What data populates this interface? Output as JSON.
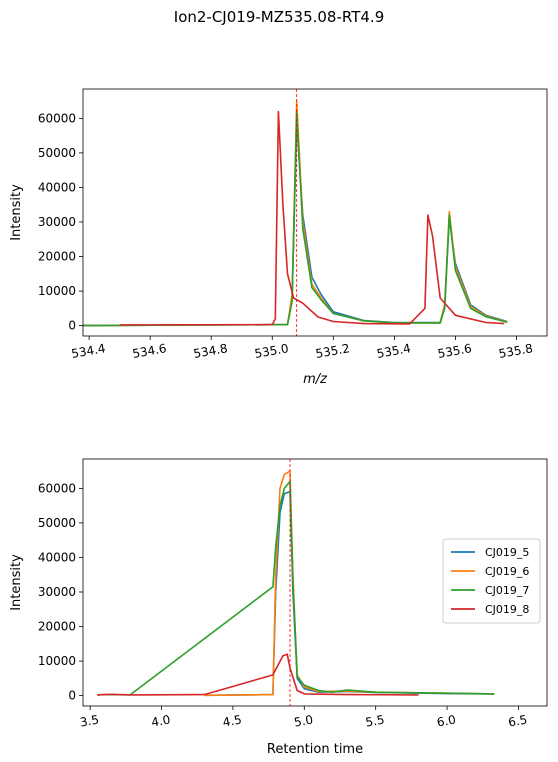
{
  "figure": {
    "title": "Ion2-CJ019-MZ535.08-RT4.9"
  },
  "colors": {
    "CJ019_5": "#1f77b4",
    "CJ019_6": "#ff7f0e",
    "CJ019_7": "#2ca02c",
    "CJ019_8": "#d62728",
    "ref_line": "#ff0000"
  },
  "chart_data": [
    {
      "type": "line",
      "title": "",
      "xlabel": "m/z",
      "ylabel": "Intensity",
      "xlim": [
        534.38,
        535.9
      ],
      "ylim": [
        -3000,
        68500
      ],
      "xticks": [
        "534.4",
        "534.6",
        "534.8",
        "535.0",
        "535.2",
        "535.4",
        "535.6",
        "535.8"
      ],
      "xtick_values": [
        534.4,
        534.6,
        534.8,
        535.0,
        535.2,
        535.4,
        535.6,
        535.8
      ],
      "yticks": [
        "0",
        "10000",
        "20000",
        "30000",
        "40000",
        "50000",
        "60000"
      ],
      "ytick_values": [
        0,
        10000,
        20000,
        30000,
        40000,
        50000,
        60000
      ],
      "ref_vline": 535.08,
      "grid": false,
      "legend": "none",
      "series": [
        {
          "name": "CJ019_5",
          "x": [
            534.38,
            535.05,
            535.065,
            535.08,
            535.1,
            535.13,
            535.16,
            535.2,
            535.3,
            535.4,
            535.55,
            535.565,
            535.58,
            535.6,
            535.65,
            535.7,
            535.77
          ],
          "y": [
            0,
            300,
            8000,
            59000,
            32000,
            14000,
            9000,
            4000,
            1500,
            900,
            900,
            6000,
            31000,
            18000,
            6000,
            3000,
            1200
          ]
        },
        {
          "name": "CJ019_6",
          "x": [
            534.38,
            535.05,
            535.065,
            535.08,
            535.1,
            535.13,
            535.16,
            535.2,
            535.3,
            535.4,
            535.55,
            535.565,
            535.58,
            535.6,
            535.65,
            535.7,
            535.77
          ],
          "y": [
            0,
            300,
            9000,
            65000,
            30000,
            12000,
            8000,
            3500,
            1400,
            800,
            800,
            6000,
            33000,
            17000,
            5500,
            2800,
            1100
          ]
        },
        {
          "name": "CJ019_7",
          "x": [
            534.38,
            535.05,
            535.065,
            535.08,
            535.1,
            535.13,
            535.16,
            535.2,
            535.3,
            535.4,
            535.55,
            535.565,
            535.58,
            535.6,
            535.65,
            535.7,
            535.77
          ],
          "y": [
            0,
            300,
            7000,
            62000,
            28000,
            11000,
            7500,
            3500,
            1400,
            800,
            800,
            5000,
            32000,
            16000,
            5000,
            2600,
            1000
          ]
        },
        {
          "name": "CJ019_8",
          "x": [
            534.5,
            535.0,
            535.01,
            535.02,
            535.035,
            535.05,
            535.07,
            535.1,
            535.15,
            535.2,
            535.3,
            535.45,
            535.5,
            535.51,
            535.525,
            535.55,
            535.6,
            535.7,
            535.76
          ],
          "y": [
            200,
            300,
            2000,
            62000,
            35000,
            15000,
            8000,
            6500,
            2500,
            1200,
            600,
            500,
            5000,
            32000,
            26000,
            8000,
            3000,
            900,
            600
          ]
        }
      ]
    },
    {
      "type": "line",
      "title": "",
      "xlabel": "Retention time",
      "ylabel": "Intensity",
      "xlim": [
        3.45,
        6.7
      ],
      "ylim": [
        -3000,
        68500
      ],
      "xticks": [
        "3.5",
        "4.0",
        "4.5",
        "5.0",
        "5.5",
        "6.0",
        "6.5"
      ],
      "xtick_values": [
        3.5,
        4.0,
        4.5,
        5.0,
        5.5,
        6.0,
        6.5
      ],
      "yticks": [
        "0",
        "10000",
        "20000",
        "30000",
        "40000",
        "50000",
        "60000"
      ],
      "ytick_values": [
        0,
        10000,
        20000,
        30000,
        40000,
        50000,
        60000
      ],
      "ref_vline": 4.9,
      "grid": false,
      "legend": "center-right",
      "series": [
        {
          "name": "CJ019_5",
          "x": [
            4.3,
            4.78,
            4.8,
            4.83,
            4.86,
            4.9,
            4.92,
            4.95,
            5.0,
            5.1,
            5.3,
            5.5,
            6.0,
            6.33
          ],
          "y": [
            100,
            300,
            30000,
            53000,
            58500,
            59000,
            30000,
            5000,
            2000,
            1000,
            1200,
            900,
            600,
            500
          ]
        },
        {
          "name": "CJ019_6",
          "x": [
            4.3,
            4.78,
            4.8,
            4.83,
            4.86,
            4.9,
            4.92,
            4.95,
            5.0,
            5.1,
            5.3,
            5.5,
            6.0,
            6.33
          ],
          "y": [
            100,
            300,
            35000,
            60000,
            64000,
            65000,
            35000,
            6000,
            2500,
            1200,
            1300,
            1000,
            700,
            500
          ]
        },
        {
          "name": "CJ019_7",
          "x": [
            3.55,
            3.6,
            3.78,
            4.78,
            4.8,
            4.83,
            4.86,
            4.9,
            4.92,
            4.95,
            5.0,
            5.1,
            5.2,
            5.3,
            5.5,
            6.0,
            6.33
          ],
          "y": [
            200,
            300,
            200,
            31500,
            43000,
            55000,
            60000,
            62000,
            33000,
            5500,
            3000,
            1500,
            1000,
            1600,
            1000,
            700,
            500
          ]
        },
        {
          "name": "CJ019_8",
          "x": [
            3.55,
            3.65,
            3.7,
            3.8,
            4.3,
            4.78,
            4.85,
            4.88,
            4.9,
            4.95,
            5.0,
            5.3,
            5.8
          ],
          "y": [
            200,
            400,
            300,
            200,
            300,
            6000,
            11500,
            12000,
            8000,
            1500,
            500,
            300,
            200
          ]
        }
      ]
    }
  ]
}
